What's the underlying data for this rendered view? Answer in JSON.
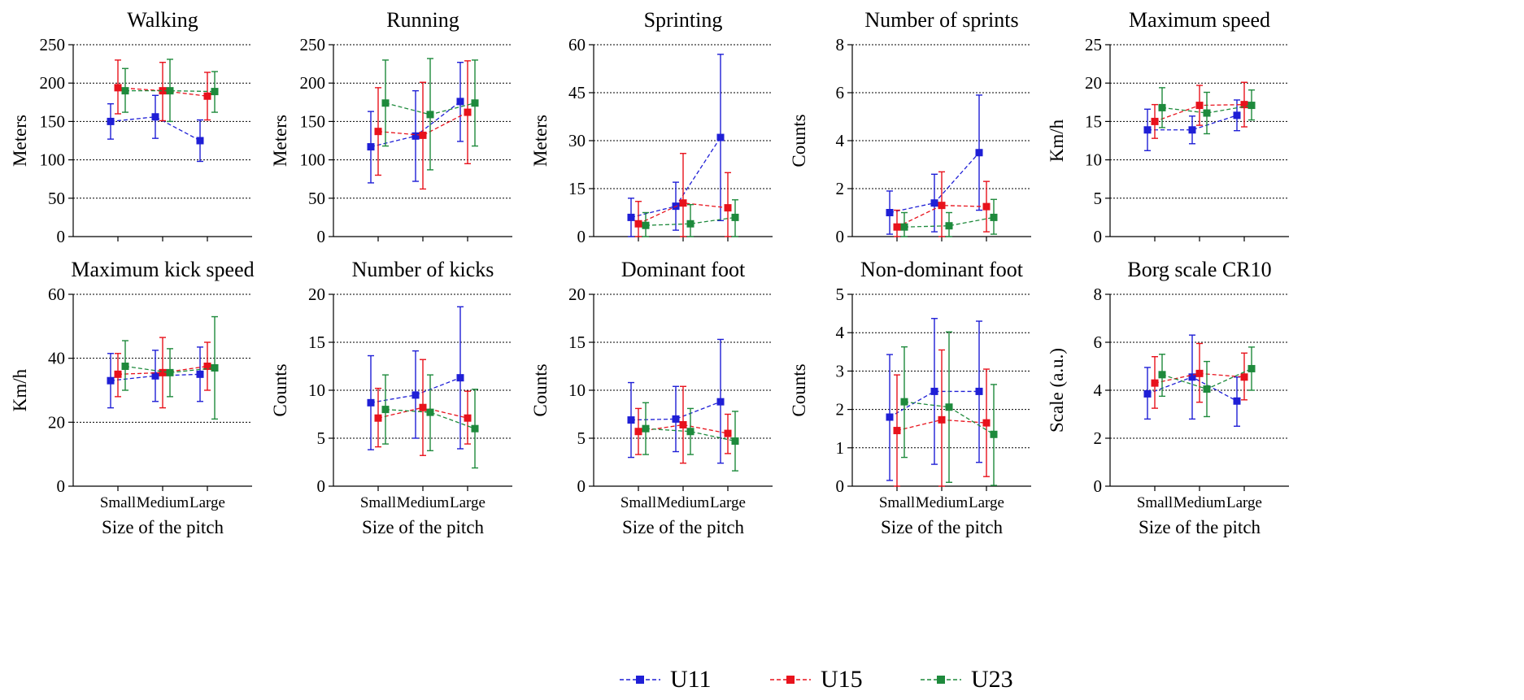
{
  "legend": {
    "position": "bottom-center",
    "items": [
      {
        "name": "U11",
        "color": "#1f1fd6"
      },
      {
        "name": "U15",
        "color": "#e8121c"
      },
      {
        "name": "U23",
        "color": "#1e8a3c"
      }
    ]
  },
  "chart_data": [
    {
      "type": "line",
      "title": "Walking",
      "ylabel": "Meters",
      "xlabel": "",
      "categories": [
        "Small",
        "Medium",
        "Large"
      ],
      "show_category_labels": false,
      "ylim": [
        0,
        250
      ],
      "yticks": [
        0,
        50,
        100,
        150,
        200,
        250
      ],
      "grid": "horizontal-dotted",
      "series": [
        {
          "name": "U11",
          "values": [
            150,
            156,
            125
          ],
          "err_low": [
            127,
            128,
            98
          ],
          "err_high": [
            173,
            184,
            152
          ]
        },
        {
          "name": "U15",
          "values": [
            194,
            190,
            183
          ],
          "err_low": [
            160,
            151,
            152
          ],
          "err_high": [
            230,
            227,
            214
          ]
        },
        {
          "name": "U23",
          "values": [
            190,
            190,
            189
          ],
          "err_low": [
            162,
            150,
            162
          ],
          "err_high": [
            219,
            231,
            215
          ]
        }
      ]
    },
    {
      "type": "line",
      "title": "Running",
      "ylabel": "Meters",
      "xlabel": "",
      "categories": [
        "Small",
        "Medium",
        "Large"
      ],
      "show_category_labels": false,
      "ylim": [
        0,
        250
      ],
      "yticks": [
        0,
        50,
        100,
        150,
        200,
        250
      ],
      "grid": "horizontal-dotted",
      "series": [
        {
          "name": "U11",
          "values": [
            117,
            131,
            176
          ],
          "err_low": [
            70,
            72,
            124
          ],
          "err_high": [
            163,
            190,
            227
          ]
        },
        {
          "name": "U15",
          "values": [
            137,
            132,
            162
          ],
          "err_low": [
            80,
            62,
            95
          ],
          "err_high": [
            194,
            201,
            229
          ]
        },
        {
          "name": "U23",
          "values": [
            174,
            159,
            174
          ],
          "err_low": [
            118,
            87,
            118
          ],
          "err_high": [
            230,
            232,
            230
          ]
        }
      ]
    },
    {
      "type": "line",
      "title": "Sprinting",
      "ylabel": "Meters",
      "xlabel": "",
      "categories": [
        "Small",
        "Medium",
        "Large"
      ],
      "show_category_labels": false,
      "ylim": [
        0,
        60
      ],
      "yticks": [
        0,
        15,
        30,
        45,
        60
      ],
      "grid": "horizontal-dotted",
      "series": [
        {
          "name": "U11",
          "values": [
            6,
            9.5,
            31
          ],
          "err_low": [
            0,
            2,
            5
          ],
          "err_high": [
            12,
            17,
            57
          ]
        },
        {
          "name": "U15",
          "values": [
            4,
            10.5,
            9
          ],
          "err_low": [
            0,
            0,
            0
          ],
          "err_high": [
            11,
            26,
            20
          ]
        },
        {
          "name": "U23",
          "values": [
            3.5,
            4,
            6
          ],
          "err_low": [
            0,
            0,
            0
          ],
          "err_high": [
            7.5,
            10,
            11.5
          ]
        }
      ]
    },
    {
      "type": "line",
      "title": "Number of sprints",
      "ylabel": "Counts",
      "xlabel": "",
      "categories": [
        "Small",
        "Medium",
        "Large"
      ],
      "show_category_labels": false,
      "ylim": [
        0,
        8
      ],
      "yticks": [
        0,
        2,
        4,
        6,
        8
      ],
      "grid": "horizontal-dotted",
      "series": [
        {
          "name": "U11",
          "values": [
            1,
            1.4,
            3.5
          ],
          "err_low": [
            0.1,
            0.2,
            1.1
          ],
          "err_high": [
            1.9,
            2.6,
            5.9
          ]
        },
        {
          "name": "U15",
          "values": [
            0.4,
            1.3,
            1.25
          ],
          "err_low": [
            0,
            0,
            0.2
          ],
          "err_high": [
            1.1,
            2.7,
            2.3
          ]
        },
        {
          "name": "U23",
          "values": [
            0.4,
            0.45,
            0.8
          ],
          "err_low": [
            0,
            0,
            0.1
          ],
          "err_high": [
            1.0,
            1.0,
            1.55
          ]
        }
      ]
    },
    {
      "type": "line",
      "title": "Maximum speed",
      "ylabel": "Km/h",
      "xlabel": "",
      "categories": [
        "Small",
        "Medium",
        "Large"
      ],
      "show_category_labels": false,
      "ylim": [
        0,
        25
      ],
      "yticks": [
        0,
        5,
        10,
        15,
        20,
        25
      ],
      "grid": "horizontal-dotted",
      "series": [
        {
          "name": "U11",
          "values": [
            13.9,
            13.9,
            15.8
          ],
          "err_low": [
            11.2,
            12.1,
            13.8
          ],
          "err_high": [
            16.6,
            15.7,
            17.8
          ]
        },
        {
          "name": "U15",
          "values": [
            15,
            17.1,
            17.2
          ],
          "err_low": [
            12.8,
            14.5,
            14.3
          ],
          "err_high": [
            17.2,
            19.7,
            20.1
          ]
        },
        {
          "name": "U23",
          "values": [
            16.8,
            16.1,
            17.1
          ],
          "err_low": [
            14.2,
            13.4,
            15.2
          ],
          "err_high": [
            19.4,
            18.8,
            19.1
          ]
        }
      ]
    },
    {
      "type": "line",
      "title": "Maximum kick speed",
      "ylabel": "Km/h",
      "xlabel": "Size of the pitch",
      "categories": [
        "Small",
        "Medium",
        "Large"
      ],
      "show_category_labels": true,
      "ylim": [
        0,
        60
      ],
      "yticks": [
        0,
        20,
        40,
        60
      ],
      "grid": "horizontal-dotted",
      "series": [
        {
          "name": "U11",
          "values": [
            33,
            34.5,
            35
          ],
          "err_low": [
            24.5,
            26.5,
            26.5
          ],
          "err_high": [
            41.5,
            42.5,
            43.5
          ]
        },
        {
          "name": "U15",
          "values": [
            35,
            35.5,
            37.5
          ],
          "err_low": [
            28,
            24.5,
            30
          ],
          "err_high": [
            41.5,
            46.5,
            45
          ]
        },
        {
          "name": "U23",
          "values": [
            37.5,
            35.5,
            37
          ],
          "err_low": [
            30,
            28,
            21
          ],
          "err_high": [
            45.5,
            43,
            53
          ]
        }
      ]
    },
    {
      "type": "line",
      "title": "Number of kicks",
      "ylabel": "Counts",
      "xlabel": "Size of the pitch",
      "categories": [
        "Small",
        "Medium",
        "Large"
      ],
      "show_category_labels": true,
      "ylim": [
        0,
        20
      ],
      "yticks": [
        0,
        5,
        10,
        15,
        20
      ],
      "grid": "horizontal-dotted",
      "series": [
        {
          "name": "U11",
          "values": [
            8.7,
            9.5,
            11.3
          ],
          "err_low": [
            3.8,
            5,
            3.9
          ],
          "err_high": [
            13.6,
            14.1,
            18.7
          ]
        },
        {
          "name": "U15",
          "values": [
            7.1,
            8.2,
            7.1
          ],
          "err_low": [
            4.1,
            3.2,
            4.4
          ],
          "err_high": [
            10.2,
            13.2,
            9.9
          ]
        },
        {
          "name": "U23",
          "values": [
            8,
            7.7,
            6
          ],
          "err_low": [
            4.4,
            3.7,
            1.9
          ],
          "err_high": [
            11.6,
            11.6,
            10.1
          ]
        }
      ]
    },
    {
      "type": "line",
      "title": "Dominant foot",
      "ylabel": "Counts",
      "xlabel": "Size of the pitch",
      "categories": [
        "Small",
        "Medium",
        "Large"
      ],
      "show_category_labels": true,
      "ylim": [
        0,
        20
      ],
      "yticks": [
        0,
        5,
        10,
        15,
        20
      ],
      "grid": "horizontal-dotted",
      "series": [
        {
          "name": "U11",
          "values": [
            6.9,
            7,
            8.8
          ],
          "err_low": [
            3,
            3.6,
            2.4
          ],
          "err_high": [
            10.8,
            10.4,
            15.3
          ]
        },
        {
          "name": "U15",
          "values": [
            5.7,
            6.4,
            5.5
          ],
          "err_low": [
            3.3,
            2.4,
            3.4
          ],
          "err_high": [
            8.1,
            10.4,
            7.5
          ]
        },
        {
          "name": "U23",
          "values": [
            6,
            5.7,
            4.7
          ],
          "err_low": [
            3.3,
            3.3,
            1.6
          ],
          "err_high": [
            8.7,
            8.1,
            7.8
          ]
        }
      ]
    },
    {
      "type": "line",
      "title": "Non-dominant foot",
      "ylabel": "Counts",
      "xlabel": "Size of the pitch",
      "categories": [
        "Small",
        "Medium",
        "Large"
      ],
      "show_category_labels": true,
      "ylim": [
        0,
        5
      ],
      "yticks": [
        0,
        1,
        2,
        3,
        4,
        5
      ],
      "grid": "horizontal-dotted",
      "series": [
        {
          "name": "U11",
          "values": [
            1.8,
            2.47,
            2.47
          ],
          "err_low": [
            0.15,
            0.57,
            0.62
          ],
          "err_high": [
            3.43,
            4.37,
            4.3
          ]
        },
        {
          "name": "U15",
          "values": [
            1.45,
            1.73,
            1.65
          ],
          "err_low": [
            0,
            0,
            0.25
          ],
          "err_high": [
            2.9,
            3.55,
            3.05
          ]
        },
        {
          "name": "U23",
          "values": [
            2.2,
            2.06,
            1.35
          ],
          "err_low": [
            0.75,
            0.1,
            0.02
          ],
          "err_high": [
            3.63,
            4.02,
            2.65
          ]
        }
      ]
    },
    {
      "type": "line",
      "title": "Borg scale CR10",
      "ylabel": "Scale (a.u.)",
      "xlabel": "Size of the pitch",
      "categories": [
        "Small",
        "Medium",
        "Large"
      ],
      "show_category_labels": true,
      "ylim": [
        0,
        8
      ],
      "yticks": [
        0,
        2,
        4,
        6,
        8
      ],
      "grid": "horizontal-dotted",
      "series": [
        {
          "name": "U11",
          "values": [
            3.85,
            4.55,
            3.55
          ],
          "err_low": [
            2.8,
            2.8,
            2.5
          ],
          "err_high": [
            4.95,
            6.3,
            4.55
          ]
        },
        {
          "name": "U15",
          "values": [
            4.3,
            4.7,
            4.55
          ],
          "err_low": [
            3.25,
            3.5,
            3.6
          ],
          "err_high": [
            5.4,
            5.95,
            5.55
          ]
        },
        {
          "name": "U23",
          "values": [
            4.65,
            4.05,
            4.9
          ],
          "err_low": [
            3.75,
            2.9,
            4.0
          ],
          "err_high": [
            5.5,
            5.2,
            5.8
          ]
        }
      ]
    }
  ]
}
